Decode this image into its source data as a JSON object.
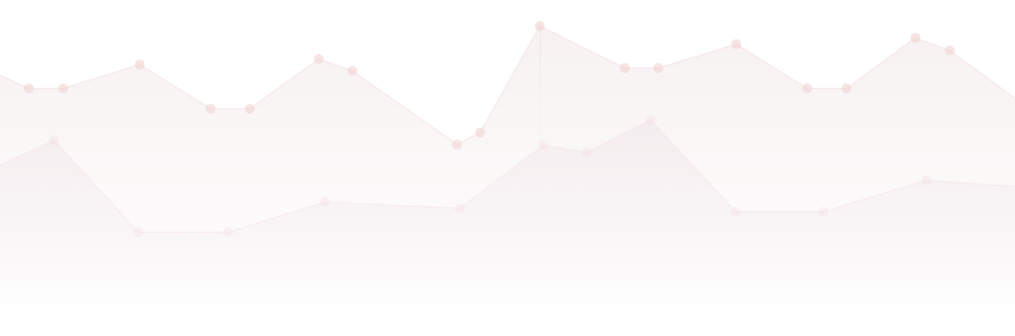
{
  "chart_data": {
    "type": "area",
    "title": "",
    "xlabel": "",
    "ylabel": "",
    "grid": false,
    "legend": "none",
    "series": [
      {
        "color": "#f0cfd0",
        "points": [
          [
            0,
            107
          ],
          [
            41,
            126
          ],
          [
            90,
            126
          ],
          [
            199,
            92
          ],
          [
            300,
            155
          ],
          [
            356,
            155
          ],
          [
            454,
            84
          ],
          [
            502,
            101
          ],
          [
            651,
            206
          ],
          [
            684,
            189
          ],
          [
            769,
            37
          ],
          [
            890,
            97
          ],
          [
            938,
            97
          ],
          [
            1049,
            63
          ],
          [
            1150,
            126
          ],
          [
            1206,
            126
          ],
          [
            1304,
            54
          ],
          [
            1353,
            72
          ],
          [
            1446,
            140
          ]
        ]
      },
      {
        "color": "#f3dde2",
        "points": [
          [
            0,
            235
          ],
          [
            77,
            200
          ],
          [
            197,
            331
          ],
          [
            325,
            331
          ],
          [
            463,
            288
          ],
          [
            655,
            297
          ],
          [
            774,
            207
          ],
          [
            836,
            217
          ],
          [
            927,
            171
          ],
          [
            1048,
            302
          ],
          [
            1173,
            302
          ],
          [
            1320,
            257
          ],
          [
            1446,
            266
          ]
        ]
      }
    ]
  }
}
